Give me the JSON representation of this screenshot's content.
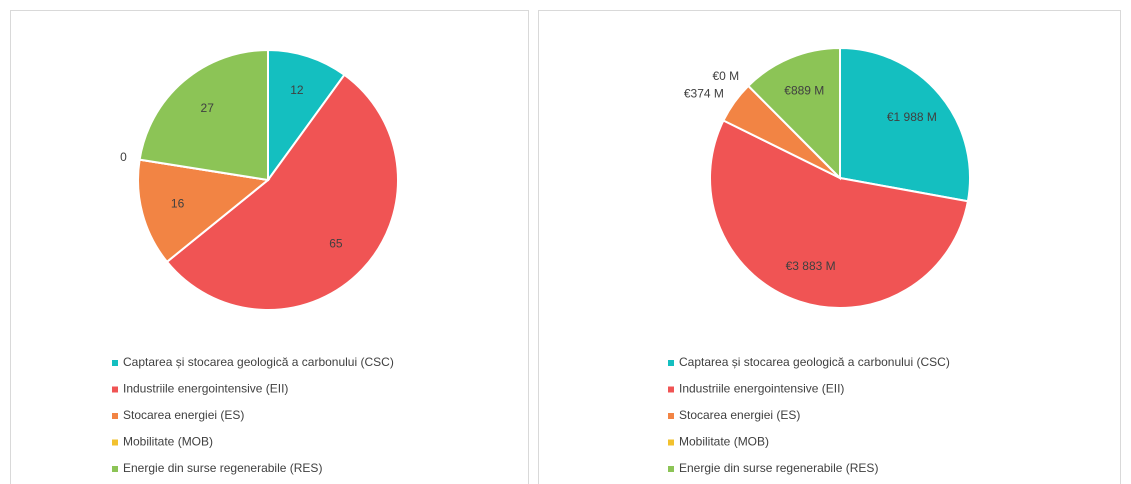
{
  "chart_data": [
    {
      "type": "pie",
      "categories": [
        "Captarea și stocarea geologică a carbonului (CSC)",
        "Industriile energointensive (EII)",
        "Stocarea energiei (ES)",
        "Mobilitate (MOB)",
        "Energie din surse regenerabile (RES)"
      ],
      "values": [
        12,
        65,
        16,
        0,
        27
      ],
      "colors": [
        "#14bfc0",
        "#f05454",
        "#f28444",
        "#f2c12e",
        "#8cc456"
      ],
      "legend": "bottom"
    },
    {
      "type": "pie",
      "categories": [
        "Captarea și stocarea geologică a carbonului (CSC)",
        "Industriile energointensive (EII)",
        "Stocarea energiei (ES)",
        "Mobilitate (MOB)",
        "Energie din surse regenerabile (RES)"
      ],
      "values": [
        1988,
        3883,
        374,
        0,
        889
      ],
      "value_labels": [
        "€1 988 M",
        "€3 883 M",
        "€374 M",
        "€0 M",
        "€889 M"
      ],
      "colors": [
        "#14bfc0",
        "#f05454",
        "#f28444",
        "#f2c12e",
        "#8cc456"
      ],
      "legend": "bottom"
    }
  ]
}
